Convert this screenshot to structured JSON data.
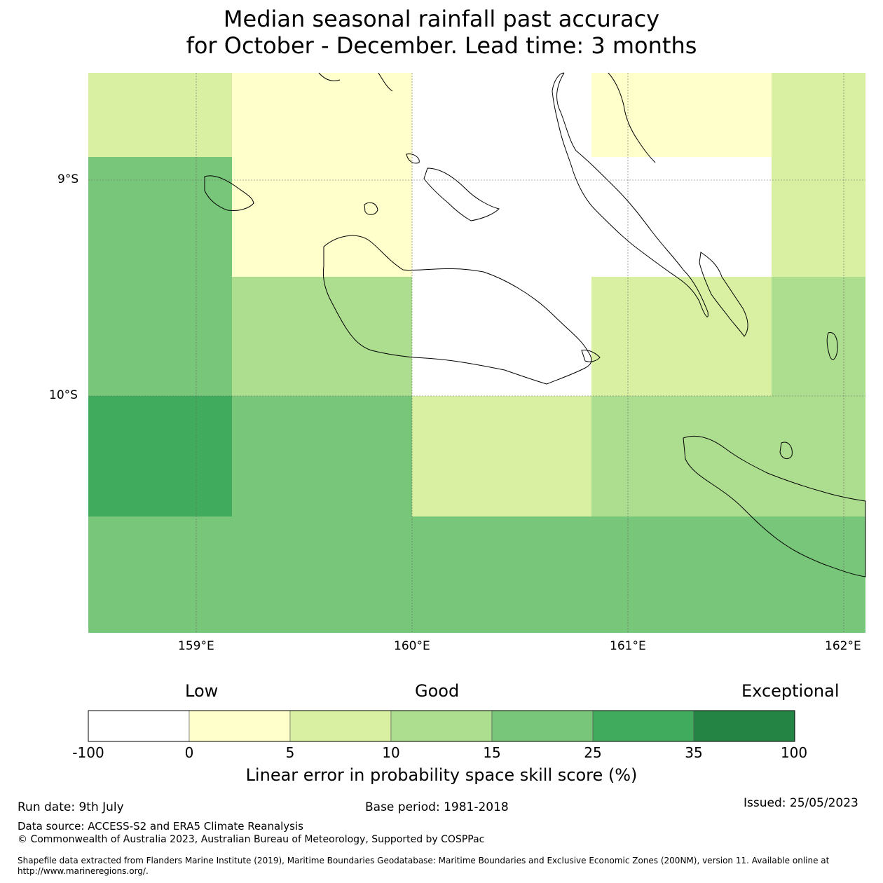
{
  "title": {
    "line1": "Median seasonal rainfall past accuracy",
    "line2": "for October - December. Lead time: 3 months"
  },
  "map": {
    "lat_labels": [
      "9°S",
      "10°S"
    ],
    "lon_labels": [
      "159°E",
      "160°E",
      "161°E",
      "162°E"
    ],
    "grid_cells_score_class": [
      [
        "5-10",
        "0-5",
        "-100-0",
        "0-5",
        "5-10"
      ],
      [
        "15-25",
        "0-5",
        "-100-0",
        "-100-0",
        "5-10"
      ],
      [
        "15-25",
        "10-15",
        "-100-0",
        "5-10",
        "10-15"
      ],
      [
        "25-35",
        "15-25",
        "5-10",
        "10-15",
        "10-15"
      ],
      [
        "15-25",
        "15-25",
        "15-25",
        "15-25",
        "15-25"
      ]
    ],
    "colors": {
      "c_-100_0": "#ffffff",
      "c_0_5": "#ffffcc",
      "c_5_10": "#d9f0a3",
      "c_10_15": "#addd8e",
      "c_15_25": "#78c679",
      "c_25_35": "#41ab5d",
      "c_35_100": "#238443"
    }
  },
  "colorbar": {
    "categories": {
      "low": "Low",
      "good": "Good",
      "exceptional": "Exceptional"
    },
    "ticks": [
      "-100",
      "0",
      "5",
      "10",
      "15",
      "25",
      "35",
      "100"
    ],
    "colors": [
      "#ffffff",
      "#ffffcc",
      "#d9f0a3",
      "#addd8e",
      "#78c679",
      "#41ab5d",
      "#238443"
    ],
    "label": "Linear error in probability space skill score (%)"
  },
  "footer": {
    "run_date": "Run date: 9th July",
    "base_period": "Base period: 1981-2018",
    "issued": "Issued: 25/05/2023",
    "data_source": "Data source: ACCESS-S2 and ERA5 Climate Reanalysis",
    "copyright": "© Commonwealth of Australia 2023, Australian Bureau of Meteorology, Supported by COSPPac",
    "shapefile": "Shapefile data extracted from Flanders Marine Institute (2019), Maritime Boundaries Geodatabase: Maritime Boundaries and Exclusive Economic Zones (200NM), version 11. Available online at http://www.marineregions.org/."
  }
}
